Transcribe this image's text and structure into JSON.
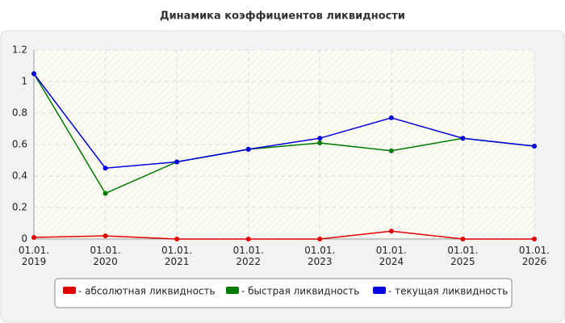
{
  "chart_data": {
    "type": "line",
    "title": "Динамика коэффициентов ликвидности",
    "categories": [
      "01.01.\n2019",
      "01.01.\n2020",
      "01.01.\n2021",
      "01.01.\n2022",
      "01.01.\n2023",
      "01.01.\n2024",
      "01.01.\n2025",
      "01.01.\n2026"
    ],
    "series": [
      {
        "name": "- абсолютная ликвидность",
        "color": "#e00000",
        "values": [
          0.01,
          0.02,
          0.0,
          0.0,
          0.0,
          0.05,
          0.0,
          0.0
        ]
      },
      {
        "name": "- быстрая ликвидность",
        "color": "#007a00",
        "values": [
          1.05,
          0.29,
          0.49,
          0.57,
          0.61,
          0.56,
          0.64,
          0.59
        ]
      },
      {
        "name": "- текущая ликвидность",
        "color": "#0000e0",
        "values": [
          1.05,
          0.45,
          0.49,
          0.57,
          0.64,
          0.77,
          0.64,
          0.59
        ]
      }
    ],
    "ylim": [
      0,
      1.2
    ],
    "yticks": [
      0,
      0.2,
      0.4,
      0.6,
      0.8,
      1,
      1.2
    ],
    "grid": true
  }
}
